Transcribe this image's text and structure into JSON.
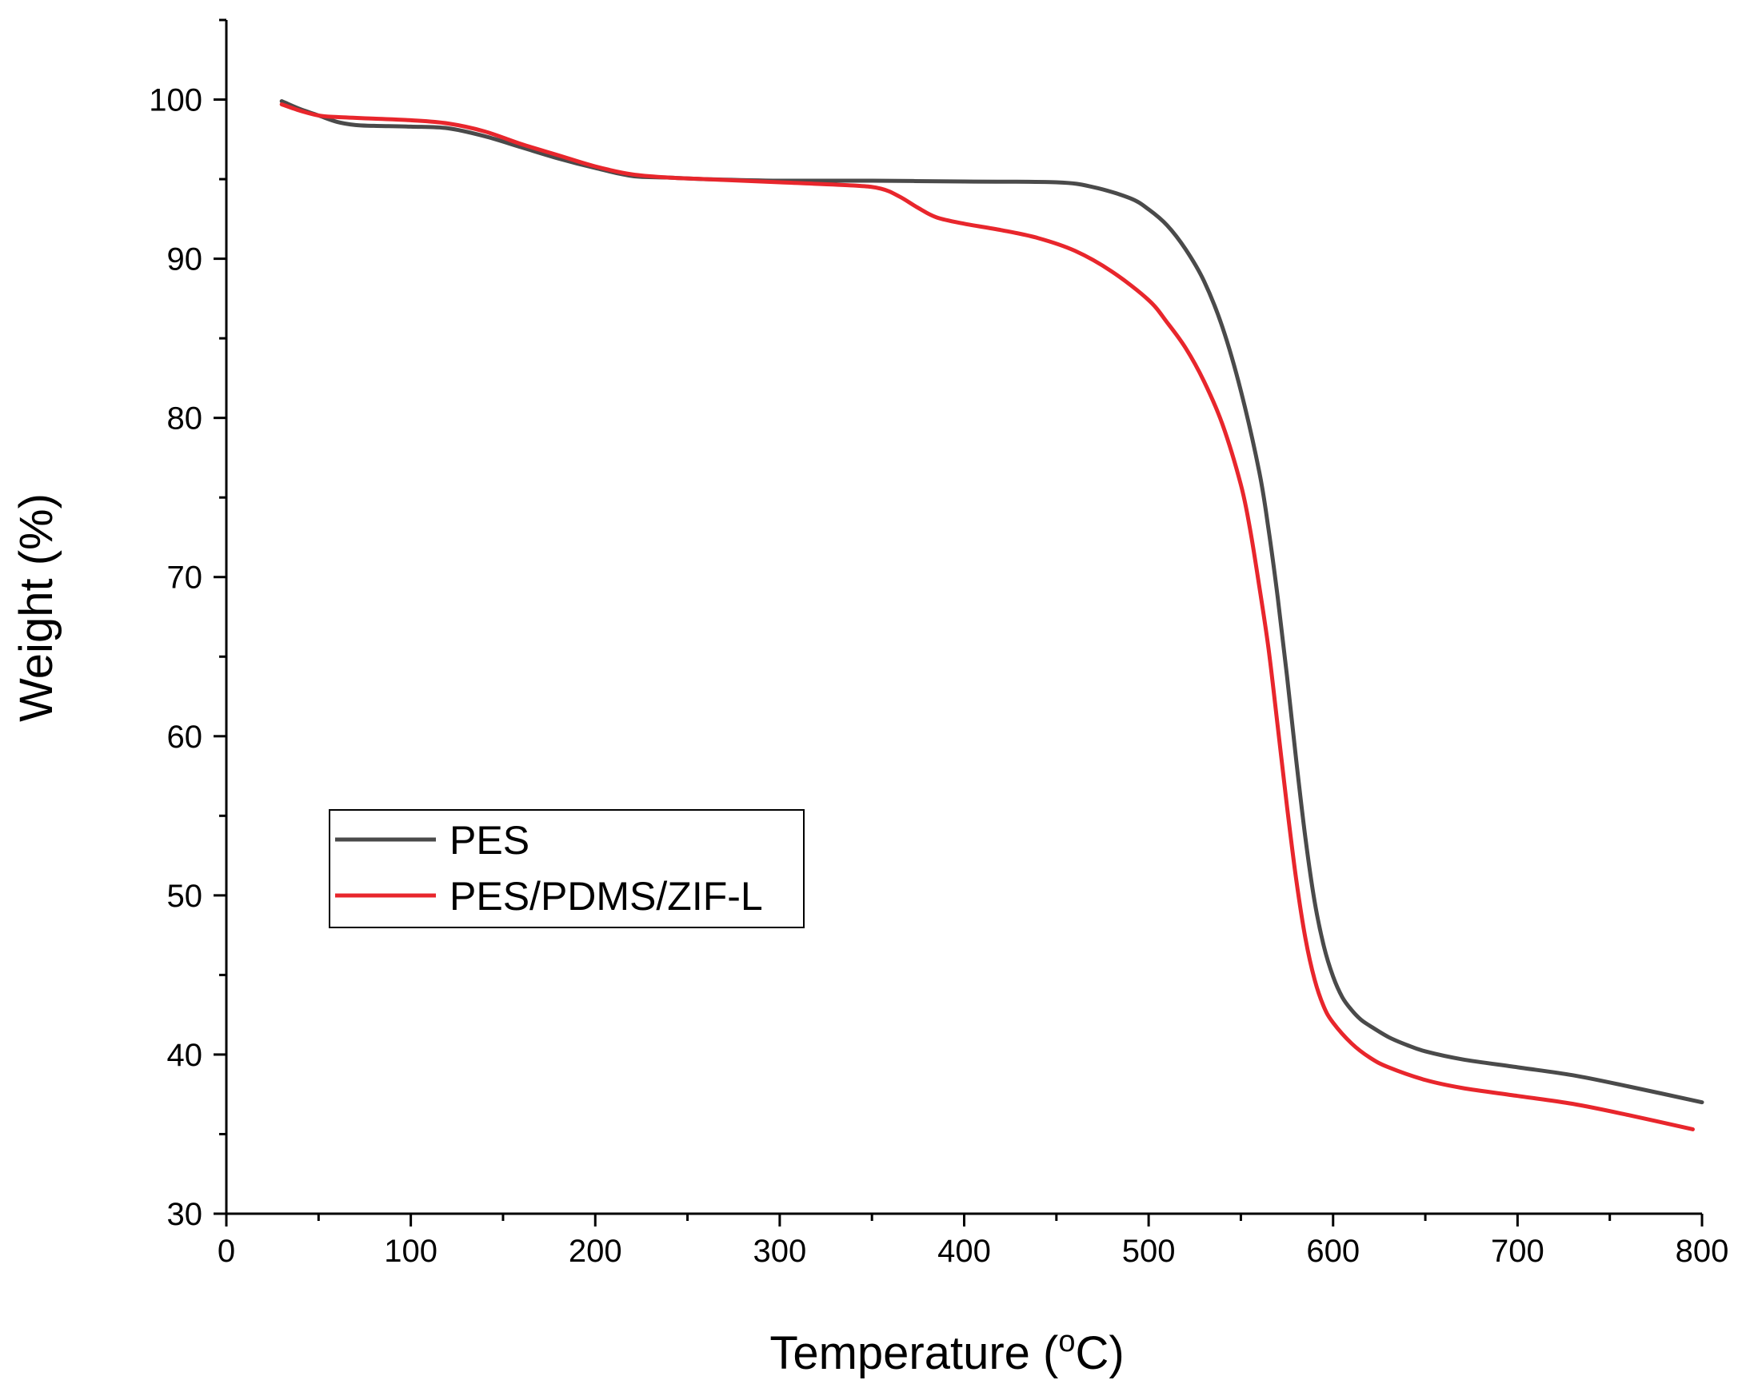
{
  "chart_data": {
    "type": "line",
    "title": "",
    "xlabel": "Temperature (",
    "xlabel_sup": "o",
    "xlabel_end": "C)",
    "ylabel": "Weight (%)",
    "xlim": [
      0,
      800
    ],
    "ylim": [
      30,
      105
    ],
    "x_ticks": [
      0,
      100,
      200,
      300,
      400,
      500,
      600,
      700,
      800
    ],
    "x_tick_labels": [
      "0",
      "100",
      "200",
      "300",
      "400",
      "500",
      "600",
      "700",
      "800"
    ],
    "y_ticks": [
      30,
      40,
      50,
      60,
      70,
      80,
      90,
      100
    ],
    "y_tick_labels": [
      "30",
      "40",
      "50",
      "60",
      "70",
      "80",
      "90",
      "100"
    ],
    "grid": false,
    "legend_position": "middle-left",
    "series": [
      {
        "name": "PES",
        "color": "#4a4a4a",
        "x": [
          30,
          40,
          50,
          60,
          70,
          80,
          100,
          120,
          140,
          160,
          180,
          200,
          220,
          240,
          260,
          300,
          350,
          400,
          450,
          470,
          490,
          500,
          510,
          520,
          530,
          540,
          550,
          560,
          565,
          570,
          575,
          580,
          585,
          590,
          595,
          600,
          605,
          610,
          615,
          620,
          630,
          640,
          650,
          670,
          700,
          730,
          760,
          800
        ],
        "values": [
          99.9,
          99.4,
          99.0,
          98.6,
          98.4,
          98.35,
          98.3,
          98.2,
          97.7,
          97.0,
          96.3,
          95.7,
          95.2,
          95.1,
          95.0,
          94.9,
          94.9,
          94.85,
          94.8,
          94.5,
          93.8,
          93.1,
          92.1,
          90.6,
          88.6,
          85.7,
          81.7,
          76.6,
          73.0,
          68.7,
          63.8,
          58.5,
          53.6,
          49.6,
          46.8,
          44.9,
          43.6,
          42.8,
          42.2,
          41.8,
          41.1,
          40.6,
          40.2,
          39.7,
          39.2,
          38.7,
          38.0,
          37.0
        ]
      },
      {
        "name": "PES/PDMS/ZIF-L",
        "color": "#e8262c",
        "x": [
          30,
          40,
          50,
          60,
          80,
          100,
          120,
          140,
          160,
          180,
          200,
          220,
          240,
          260,
          300,
          340,
          355,
          365,
          375,
          385,
          400,
          420,
          440,
          460,
          480,
          500,
          510,
          520,
          530,
          540,
          550,
          555,
          560,
          565,
          570,
          575,
          580,
          585,
          590,
          595,
          600,
          610,
          620,
          630,
          650,
          670,
          700,
          730,
          760,
          795
        ],
        "values": [
          99.7,
          99.3,
          99.0,
          98.9,
          98.8,
          98.7,
          98.5,
          98.0,
          97.2,
          96.5,
          95.8,
          95.3,
          95.1,
          95.0,
          94.8,
          94.6,
          94.4,
          93.9,
          93.2,
          92.6,
          92.2,
          91.8,
          91.3,
          90.5,
          89.2,
          87.4,
          86.0,
          84.4,
          82.3,
          79.6,
          75.8,
          73.0,
          69.4,
          65.5,
          60.6,
          55.6,
          51.0,
          47.3,
          44.7,
          43.0,
          42.0,
          40.7,
          39.8,
          39.2,
          38.4,
          37.9,
          37.4,
          36.9,
          36.2,
          35.3
        ]
      }
    ]
  }
}
